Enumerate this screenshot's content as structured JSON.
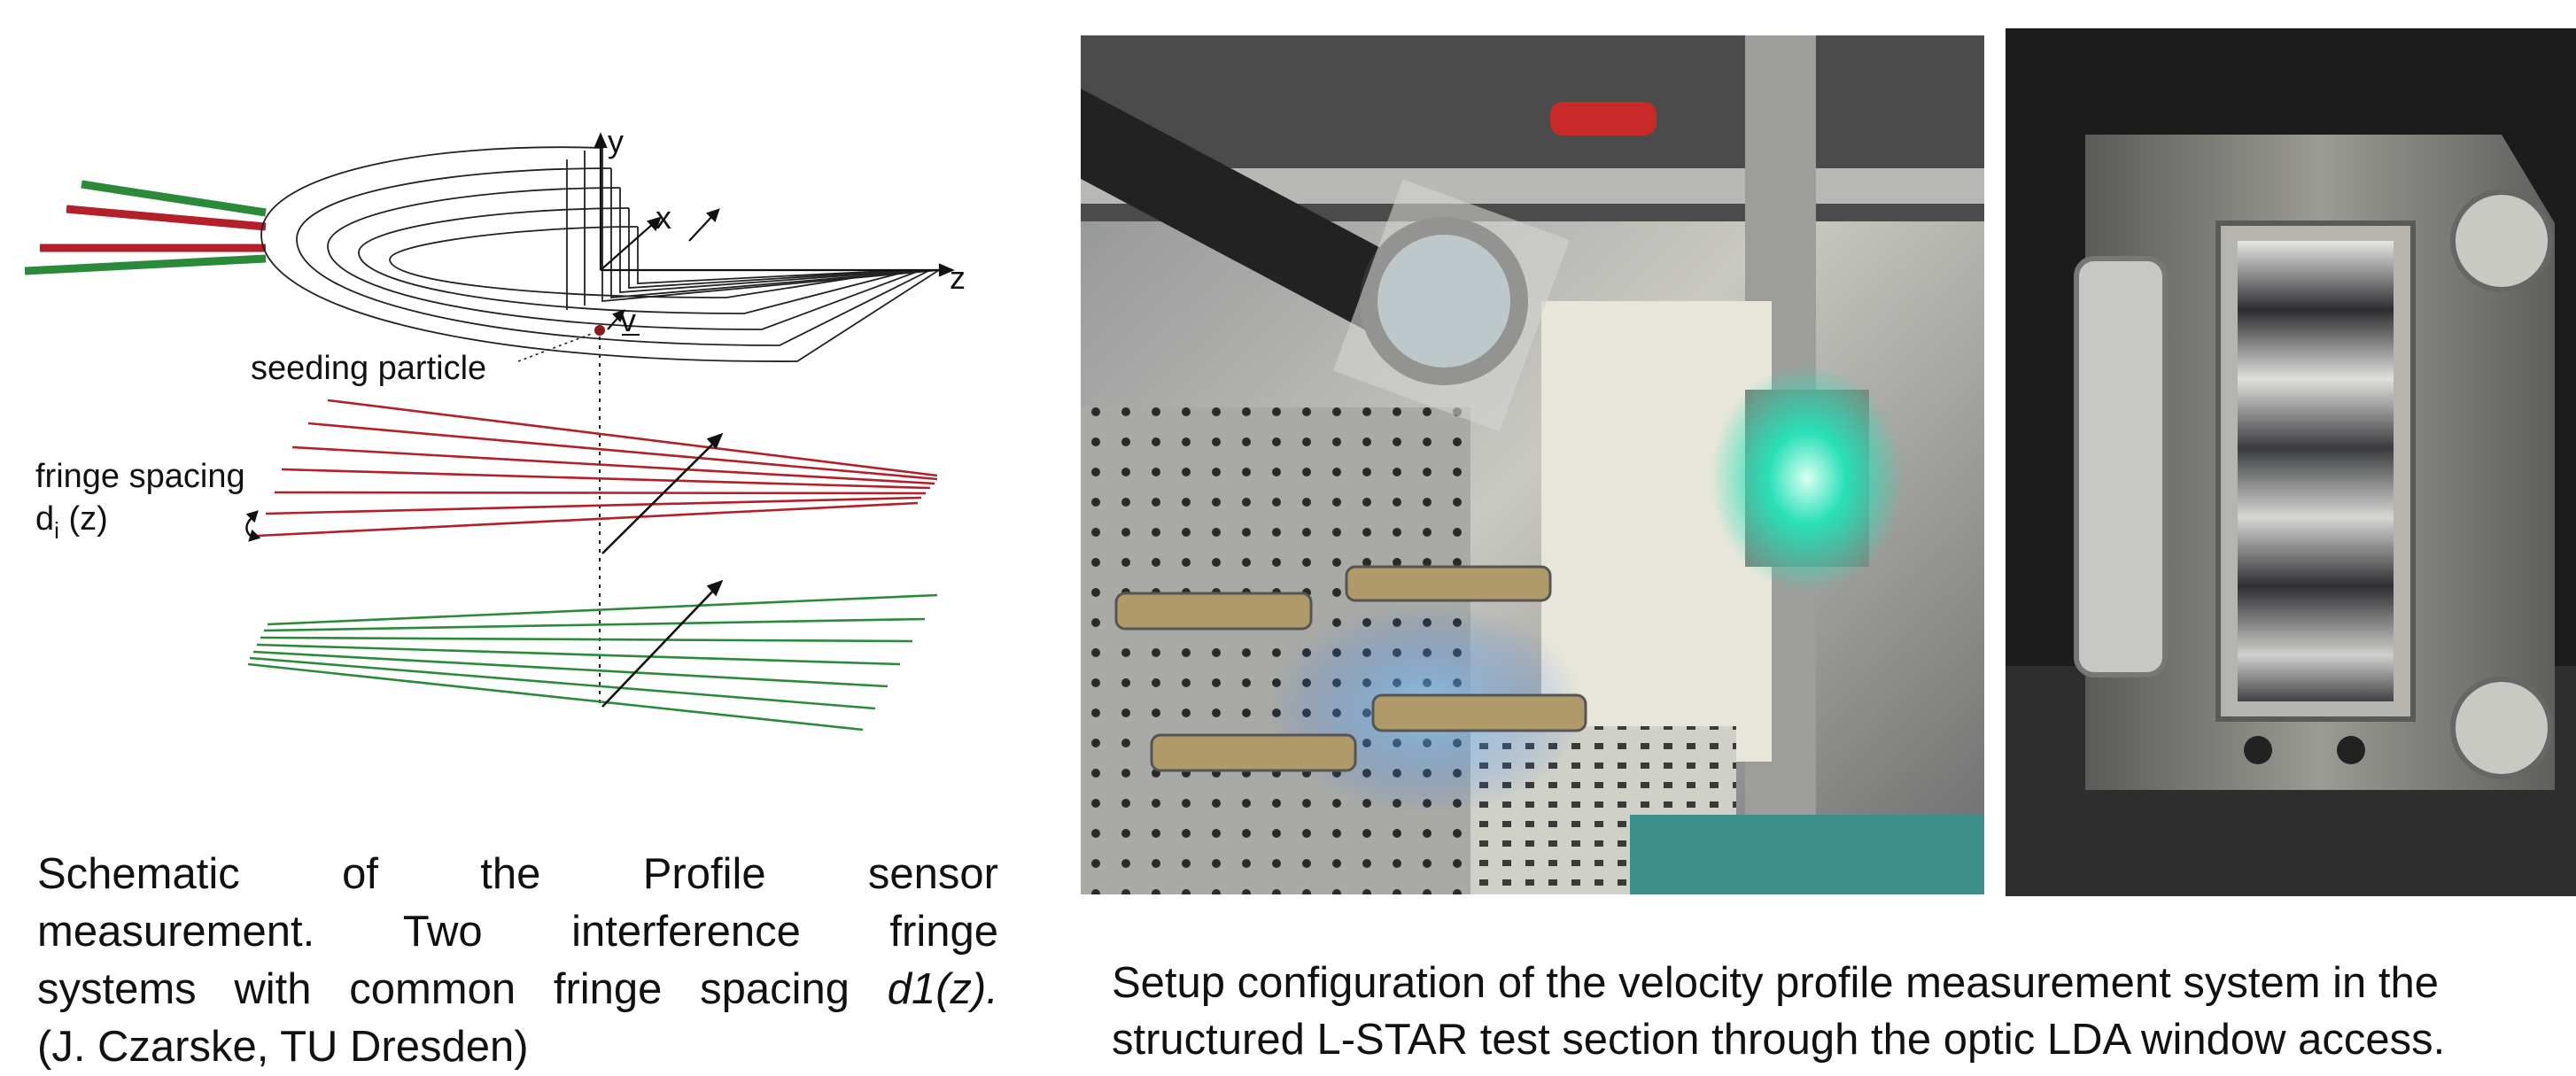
{
  "diagram": {
    "axis_y": "y",
    "axis_x": "x",
    "axis_z": "z",
    "velocity_label": "v",
    "seeding_label": "seeding particle",
    "fringe_label_line1": "fringe spacing",
    "fringe_label_d": "d",
    "fringe_label_sub": "i",
    "fringe_label_z": " (z)",
    "colors": {
      "red_beam": "#b3202a",
      "green_beam": "#2a8a3a",
      "particle": "#8b1a1a"
    }
  },
  "left_caption": {
    "line1": "Schematic of the Profile sensor",
    "line2": "measurement. Two interference fringe",
    "line3_pre": "systems with common fringe spacing ",
    "line3_italic": "d1(z).",
    "line4": "(J. Czarske, TU Dresden)"
  },
  "right_caption": {
    "line1": "Setup configuration of the velocity profile measurement system in the",
    "line2": "structured L-STAR test section through the optic LDA window access."
  }
}
